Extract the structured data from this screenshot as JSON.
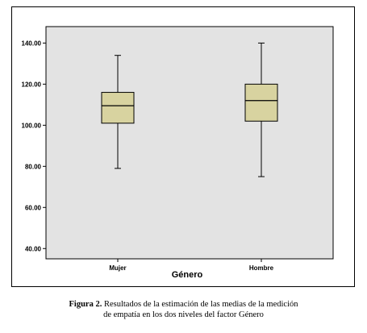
{
  "chart_data": {
    "type": "box",
    "xlabel": "Género",
    "ylabel": "",
    "ylim": [
      35,
      148
    ],
    "yticks": [
      "40.00",
      "60.00",
      "80.00",
      "100.00",
      "120.00",
      "140.00"
    ],
    "categories": [
      "Mujer",
      "Hombre"
    ],
    "boxes": [
      {
        "category": "Mujer",
        "min": 79,
        "q1": 101,
        "median": 109.5,
        "q3": 116,
        "max": 134
      },
      {
        "category": "Hombre",
        "min": 75,
        "q1": 102,
        "median": 112,
        "q3": 120,
        "max": 140
      }
    ],
    "grid": false,
    "colors": {
      "plot_bg": "#e3e3e3",
      "box_fill": "#d8d3a0",
      "line": "#000000"
    }
  },
  "caption": {
    "label": "Figura 2.",
    "line1": "Resultados de la estimación de las medias de la medición",
    "line2": "de empatía en los dos niveles del factor Género"
  }
}
